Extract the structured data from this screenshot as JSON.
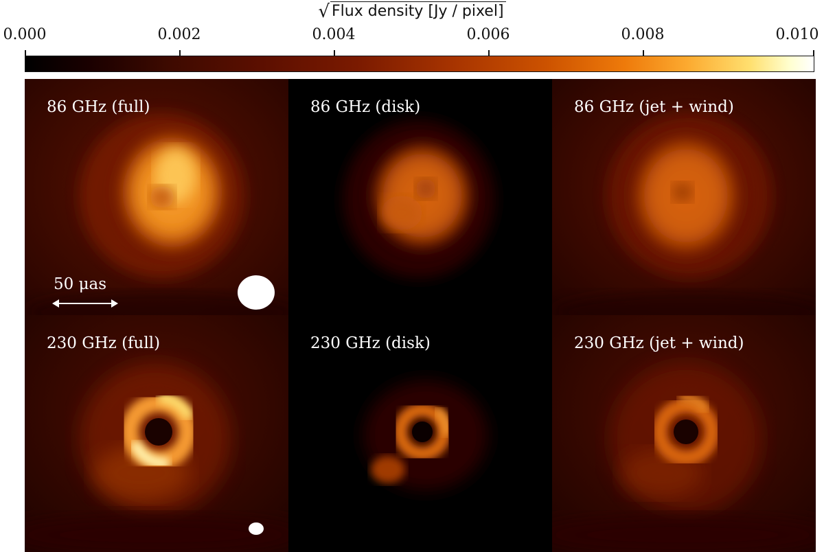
{
  "colorbar": {
    "title": "Flux density [Jy / pixel]",
    "title_prefix": "√",
    "ticks": [
      "0.000",
      "0.002",
      "0.004",
      "0.006",
      "0.008",
      "0.010"
    ],
    "range": [
      0.0,
      0.01
    ],
    "colormap": "afmhot"
  },
  "panels": [
    {
      "label": "86 GHz (full)"
    },
    {
      "label": "86 GHz (disk)"
    },
    {
      "label": "86 GHz (jet + wind)"
    },
    {
      "label": "230 GHz (full)"
    },
    {
      "label": "230 GHz (disk)"
    },
    {
      "label": "230 GHz (jet + wind)"
    }
  ],
  "scalebar": {
    "label": "50 μas"
  },
  "colors": {
    "background_dark": "#000000",
    "ring_bright": "#ffe070",
    "ring_mid": "#ee7a0a",
    "haze": "#5c0f00"
  }
}
